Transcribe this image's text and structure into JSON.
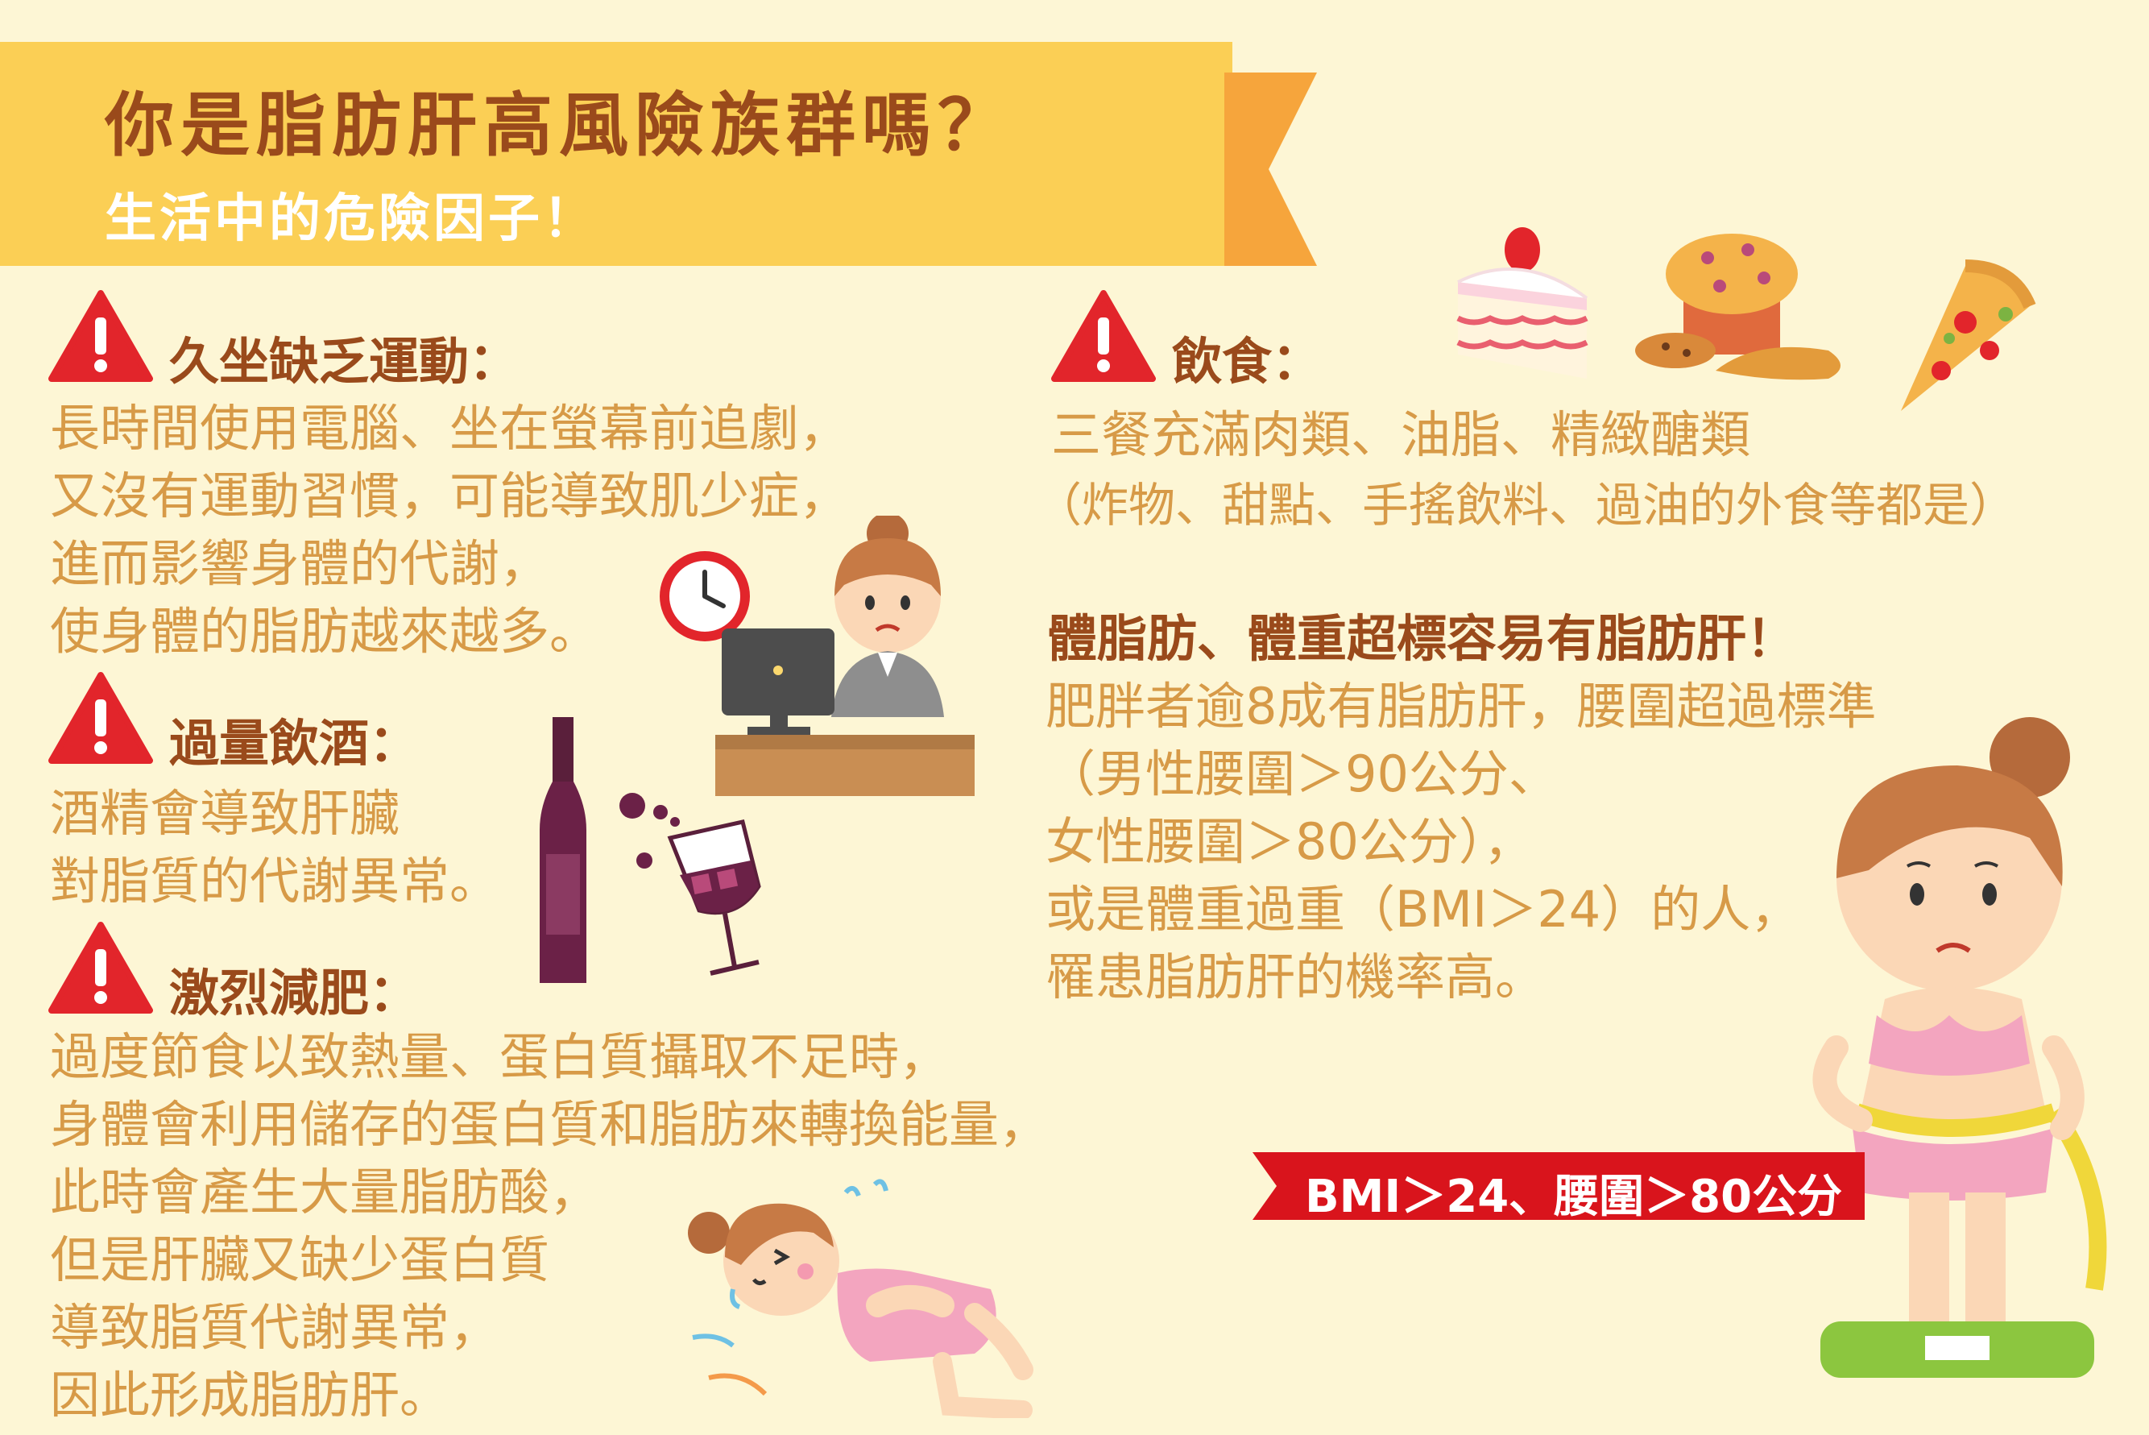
{
  "header": {
    "title": "你是脂肪肝高風險族群嗎？",
    "subtitle": "生活中的危險因子！"
  },
  "sections": {
    "sedentary": {
      "heading": "久坐缺乏運動：",
      "lines": [
        "長時間使用電腦、坐在螢幕前追劇，",
        "又沒有運動習慣，可能導致肌少症，",
        "進而影響身體的代謝，",
        "使身體的脂肪越來越多。"
      ]
    },
    "alcohol": {
      "heading": "過量飲酒：",
      "lines": [
        "酒精會導致肝臟",
        "對脂質的代謝異常。"
      ]
    },
    "diet_loss": {
      "heading": "激烈減肥：",
      "lines": [
        "過度節食以致熱量、蛋白質攝取不足時，",
        "身體會利用儲存的蛋白質和脂肪來轉換能量，",
        "此時會產生大量脂肪酸，",
        "但是肝臟又缺少蛋白質",
        "導致脂質代謝異常，",
        "因此形成脂肪肝。"
      ]
    },
    "food": {
      "heading": "飲食：",
      "lines": [
        "三餐充滿肉類、油脂、精緻醣類",
        "（炸物、甜點、手搖飲料、過油的外食等都是）"
      ]
    },
    "weight": {
      "heading": "體脂肪、體重超標容易有脂肪肝！",
      "lines": [
        "肥胖者逾8成有脂肪肝，腰圍超過標準",
        "（男性腰圍＞90公分、",
        "女性腰圍＞80公分），",
        "或是體重過重（BMI＞24）的人，",
        "罹患脂肪肝的機率高。"
      ]
    }
  },
  "bmi_banner": "BMI＞24、腰圍＞80公分",
  "colors": {
    "background": "#fdf6d5",
    "banner": "#fbcf55",
    "banner_tail": "#f6a53c",
    "heading": "#9a4a1b",
    "body": "#d79a47",
    "warning": "#e2252b",
    "bmi_banner": "#d9141c"
  }
}
